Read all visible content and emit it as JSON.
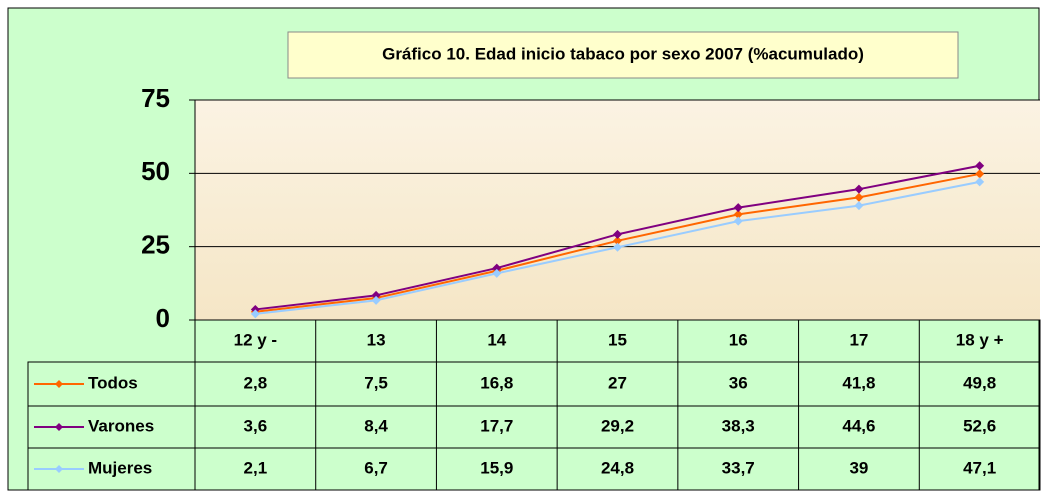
{
  "chart_data": {
    "type": "line",
    "title": "Gráfico 10. Edad inicio tabaco por sexo 2007 (%acumulado)",
    "categories": [
      "12 y -",
      "13",
      "14",
      "15",
      "16",
      "17",
      "18 y +"
    ],
    "series": [
      {
        "name": "Todos",
        "color": "#ff6600",
        "values": [
          2.8,
          7.5,
          16.8,
          27,
          36,
          41.8,
          49.8
        ],
        "value_labels": [
          "2,8",
          "7,5",
          "16,8",
          "27",
          "36",
          "41,8",
          "49,8"
        ]
      },
      {
        "name": "Varones",
        "color": "#800080",
        "values": [
          3.6,
          8.4,
          17.7,
          29.2,
          38.3,
          44.6,
          52.6
        ],
        "value_labels": [
          "3,6",
          "8,4",
          "17,7",
          "29,2",
          "38,3",
          "44,6",
          "52,6"
        ]
      },
      {
        "name": "Mujeres",
        "color": "#99ccff",
        "values": [
          2.1,
          6.7,
          15.9,
          24.8,
          33.7,
          39,
          47.1
        ],
        "value_labels": [
          "2,1",
          "6,7",
          "15,9",
          "24,8",
          "33,7",
          "39",
          "47,1"
        ]
      }
    ],
    "ylim": [
      0,
      75
    ],
    "yticks": [
      0,
      25,
      50,
      75
    ],
    "grid": true
  }
}
